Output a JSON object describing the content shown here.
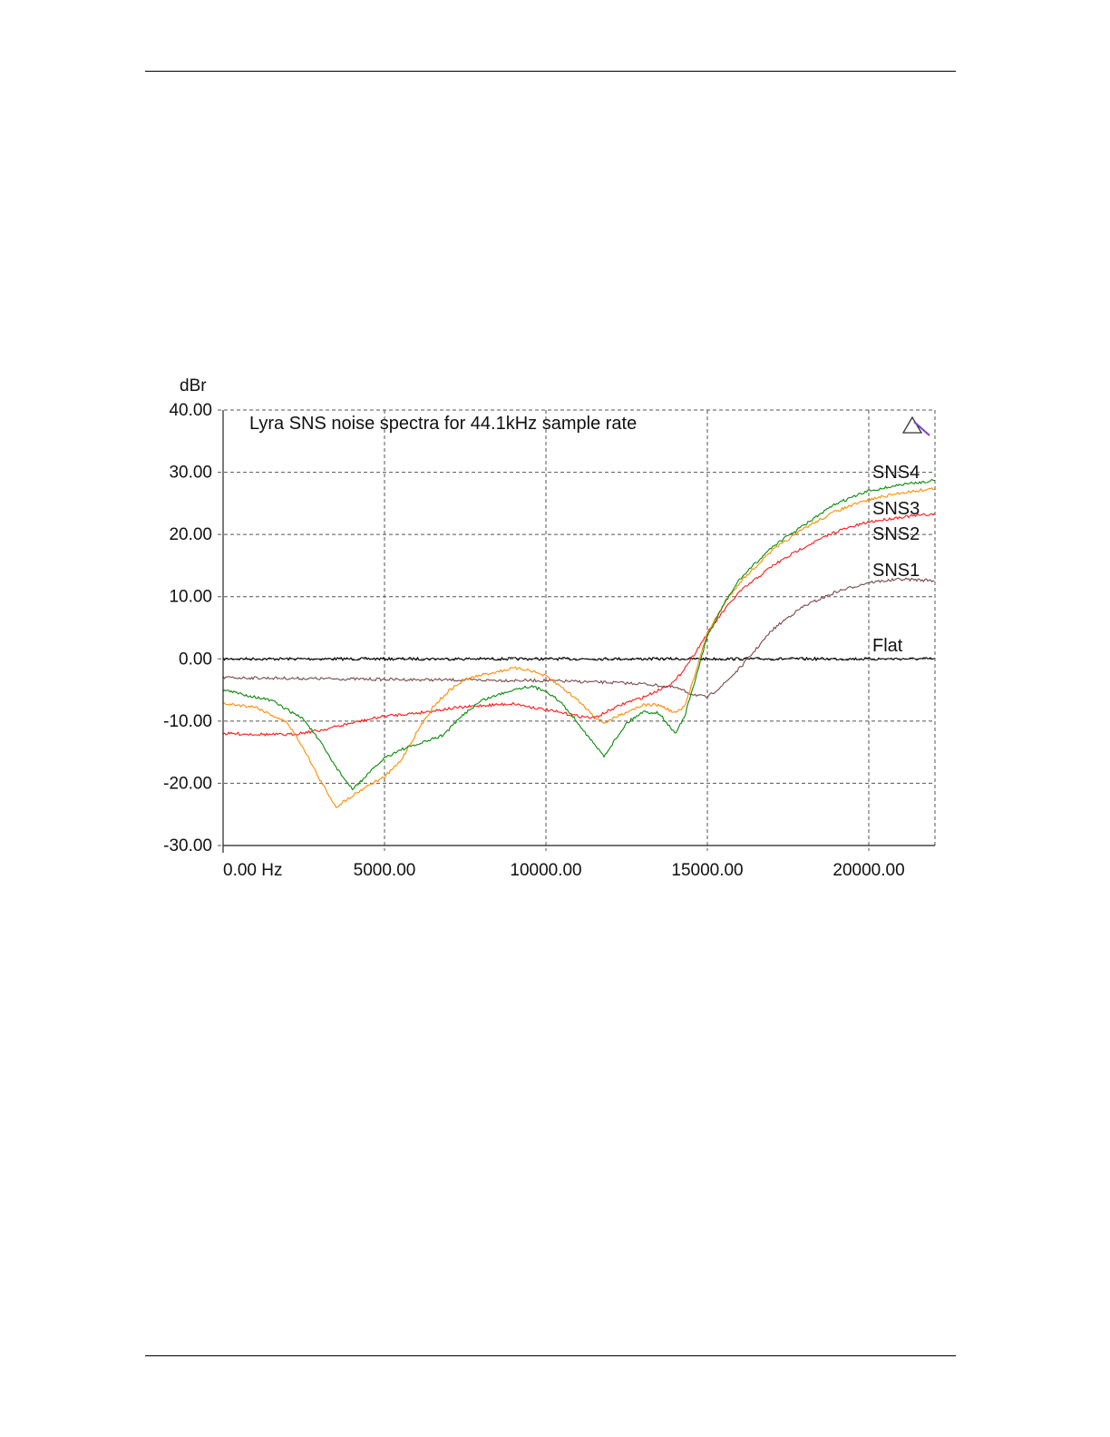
{
  "chart_data": {
    "type": "line",
    "title": "Lyra SNS noise spectra for 44.1kHz sample rate",
    "ylabel": "dBr",
    "xlabel": "",
    "xlim": [
      0,
      22050
    ],
    "ylim": [
      -30,
      40
    ],
    "grid": true,
    "x_ticks": [
      0,
      5000,
      10000,
      15000,
      20000
    ],
    "x_tick_labels": [
      "0.00 Hz",
      "5000.00",
      "10000.00",
      "15000.00",
      "20000.00"
    ],
    "y_ticks": [
      40,
      30,
      20,
      10,
      0,
      -10,
      -20,
      -30
    ],
    "y_tick_labels": [
      "40.00",
      "30.00",
      "20.00",
      "10.00",
      "0.00",
      "-10.00",
      "-20.00",
      "-30.00"
    ],
    "series": [
      {
        "name": "Flat",
        "color": "#000000",
        "x": [
          0,
          22050
        ],
        "y": [
          0,
          0
        ]
      },
      {
        "name": "SNS1",
        "color": "#7a4a4a",
        "x": [
          0,
          5000,
          10000,
          12000,
          13000,
          14000,
          14500,
          15000,
          15500,
          16000,
          16500,
          17000,
          17500,
          18000,
          19000,
          20000,
          21000,
          22050
        ],
        "y": [
          -3,
          -3.3,
          -3.5,
          -3.8,
          -4,
          -4.6,
          -5.6,
          -6.2,
          -4.1,
          -1.5,
          1.5,
          4.6,
          6.7,
          8.5,
          10.8,
          12.3,
          12.8,
          12.6
        ]
      },
      {
        "name": "SNS2",
        "color": "#ff1a1a",
        "x": [
          0,
          2000,
          3000,
          4000,
          5000,
          6000,
          7000,
          8000,
          9000,
          10000,
          11000,
          11500,
          12000,
          12500,
          13000,
          13500,
          14000,
          14500,
          15000,
          15500,
          16000,
          17000,
          18000,
          19000,
          20000,
          21000,
          22050
        ],
        "y": [
          -12,
          -12.2,
          -11.5,
          -10.3,
          -9.2,
          -8.7,
          -8,
          -7.5,
          -7.2,
          -8.2,
          -9.2,
          -9.5,
          -8.2,
          -7,
          -6.2,
          -5,
          -3.6,
          0,
          4.1,
          7.7,
          10.8,
          14.9,
          18,
          20.5,
          22,
          22.8,
          23.3
        ]
      },
      {
        "name": "SNS3",
        "color": "#ff8c00",
        "x": [
          0,
          1000,
          2000,
          2500,
          3000,
          3500,
          4000,
          4500,
          5000,
          5500,
          6000,
          6500,
          7000,
          7500,
          8000,
          9000,
          9500,
          10000,
          10500,
          11000,
          11500,
          11800,
          12500,
          13000,
          13500,
          14000,
          14300,
          14700,
          15000,
          15500,
          16000,
          17000,
          18000,
          19000,
          20000,
          21000,
          22050
        ],
        "y": [
          -7.2,
          -7.7,
          -10.3,
          -14.4,
          -19.5,
          -23.8,
          -22,
          -20.3,
          -19,
          -16.4,
          -11.8,
          -7.7,
          -5.1,
          -3.3,
          -2.6,
          -1.5,
          -1.8,
          -2.8,
          -4.6,
          -6.7,
          -9.2,
          -10.3,
          -8.5,
          -7.4,
          -7.4,
          -8.7,
          -7.7,
          -1,
          4.1,
          8.7,
          12.3,
          17.4,
          21,
          23.8,
          25.6,
          26.7,
          27.4
        ]
      },
      {
        "name": "SNS4",
        "color": "#0a8a0a",
        "x": [
          0,
          1500,
          2500,
          3000,
          3500,
          4000,
          4500,
          5000,
          5500,
          6000,
          6800,
          7500,
          8000,
          9000,
          9500,
          10000,
          10500,
          11000,
          11500,
          11800,
          12500,
          13000,
          13500,
          14000,
          14300,
          14700,
          15000,
          15500,
          16000,
          17000,
          18000,
          19000,
          20000,
          21000,
          22050
        ],
        "y": [
          -5,
          -6.7,
          -9.7,
          -13.3,
          -17.4,
          -21,
          -18.5,
          -15.9,
          -14.6,
          -13.8,
          -12.3,
          -8.7,
          -6.7,
          -4.9,
          -4.4,
          -5.1,
          -7.2,
          -10.3,
          -13.8,
          -15.6,
          -10.3,
          -8.5,
          -8.7,
          -12,
          -9.2,
          -2,
          3.6,
          8.7,
          12.8,
          18,
          21.5,
          25,
          27,
          28,
          28.7
        ]
      }
    ]
  }
}
